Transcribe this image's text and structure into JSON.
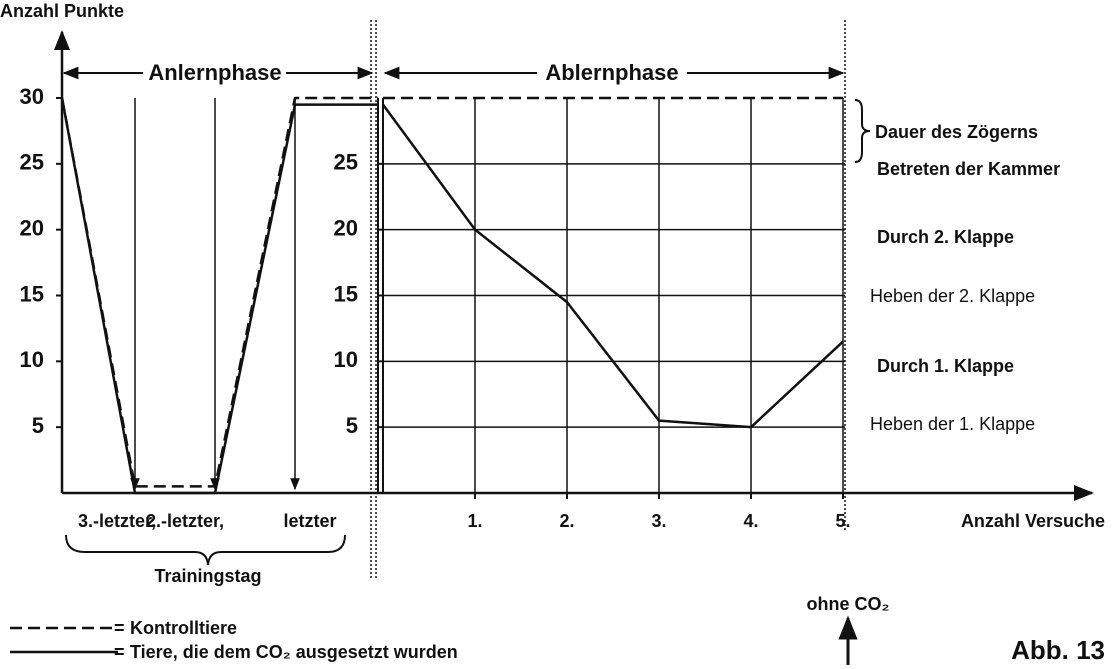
{
  "figure_label": "Abb. 13",
  "note": "ohne CO₂",
  "legend_separator": "=",
  "chart_data": [
    {
      "type": "line",
      "y_label": "Anzahl Punkte",
      "phase_label": "Anlernphase",
      "category_note": "Trainingstag",
      "categories": [
        null,
        "3.-letzter,",
        "2.-letzter,",
        "letzter",
        null
      ],
      "ylim": [
        0,
        30
      ],
      "yticks": [
        5,
        10,
        15,
        20,
        25,
        30
      ],
      "series": [
        {
          "color": "#111111",
          "style": "dashed",
          "values": [
            30,
            0.5,
            0.5,
            30,
            30
          ]
        },
        {
          "color": "#111111",
          "style": "solid",
          "values": [
            30,
            0,
            0,
            29.5,
            29.5
          ]
        }
      ]
    },
    {
      "type": "line",
      "x_label": "Anzahl Versuche",
      "phase_label": "Ablernphase",
      "x": [
        0,
        1,
        2,
        3,
        4,
        5
      ],
      "xlim": [
        0,
        5
      ],
      "xticks": [
        {
          "value": 1,
          "label": "1."
        },
        {
          "value": 2,
          "label": "2."
        },
        {
          "value": 3,
          "label": "3."
        },
        {
          "value": 4,
          "label": "4."
        },
        {
          "value": 5,
          "label": "5."
        }
      ],
      "ylim": [
        0,
        30
      ],
      "yticks": [
        5,
        10,
        15,
        20,
        25
      ],
      "grid": true,
      "annotations": [
        {
          "text": "Dauer des Zögerns",
          "bold": true
        },
        {
          "text": "Betreten der Kammer",
          "bold": true
        },
        {
          "text": "Durch 2. Klappe",
          "bold": true
        },
        {
          "text": "Heben der 2. Klappe",
          "bold": false
        },
        {
          "text": "Durch 1. Klappe",
          "bold": true
        },
        {
          "text": "Heben der 1. Klappe",
          "bold": false
        }
      ],
      "series": [
        {
          "name": "Kontrolltiere",
          "color": "#111111",
          "style": "dashed",
          "values": [
            30,
            30,
            30,
            30,
            30,
            30
          ]
        },
        {
          "name": "Tiere, die dem CO₂ ausgesetzt wurden",
          "color": "#111111",
          "style": "solid",
          "values": [
            29.5,
            20,
            14.5,
            5.5,
            5,
            11.5
          ]
        }
      ]
    }
  ]
}
